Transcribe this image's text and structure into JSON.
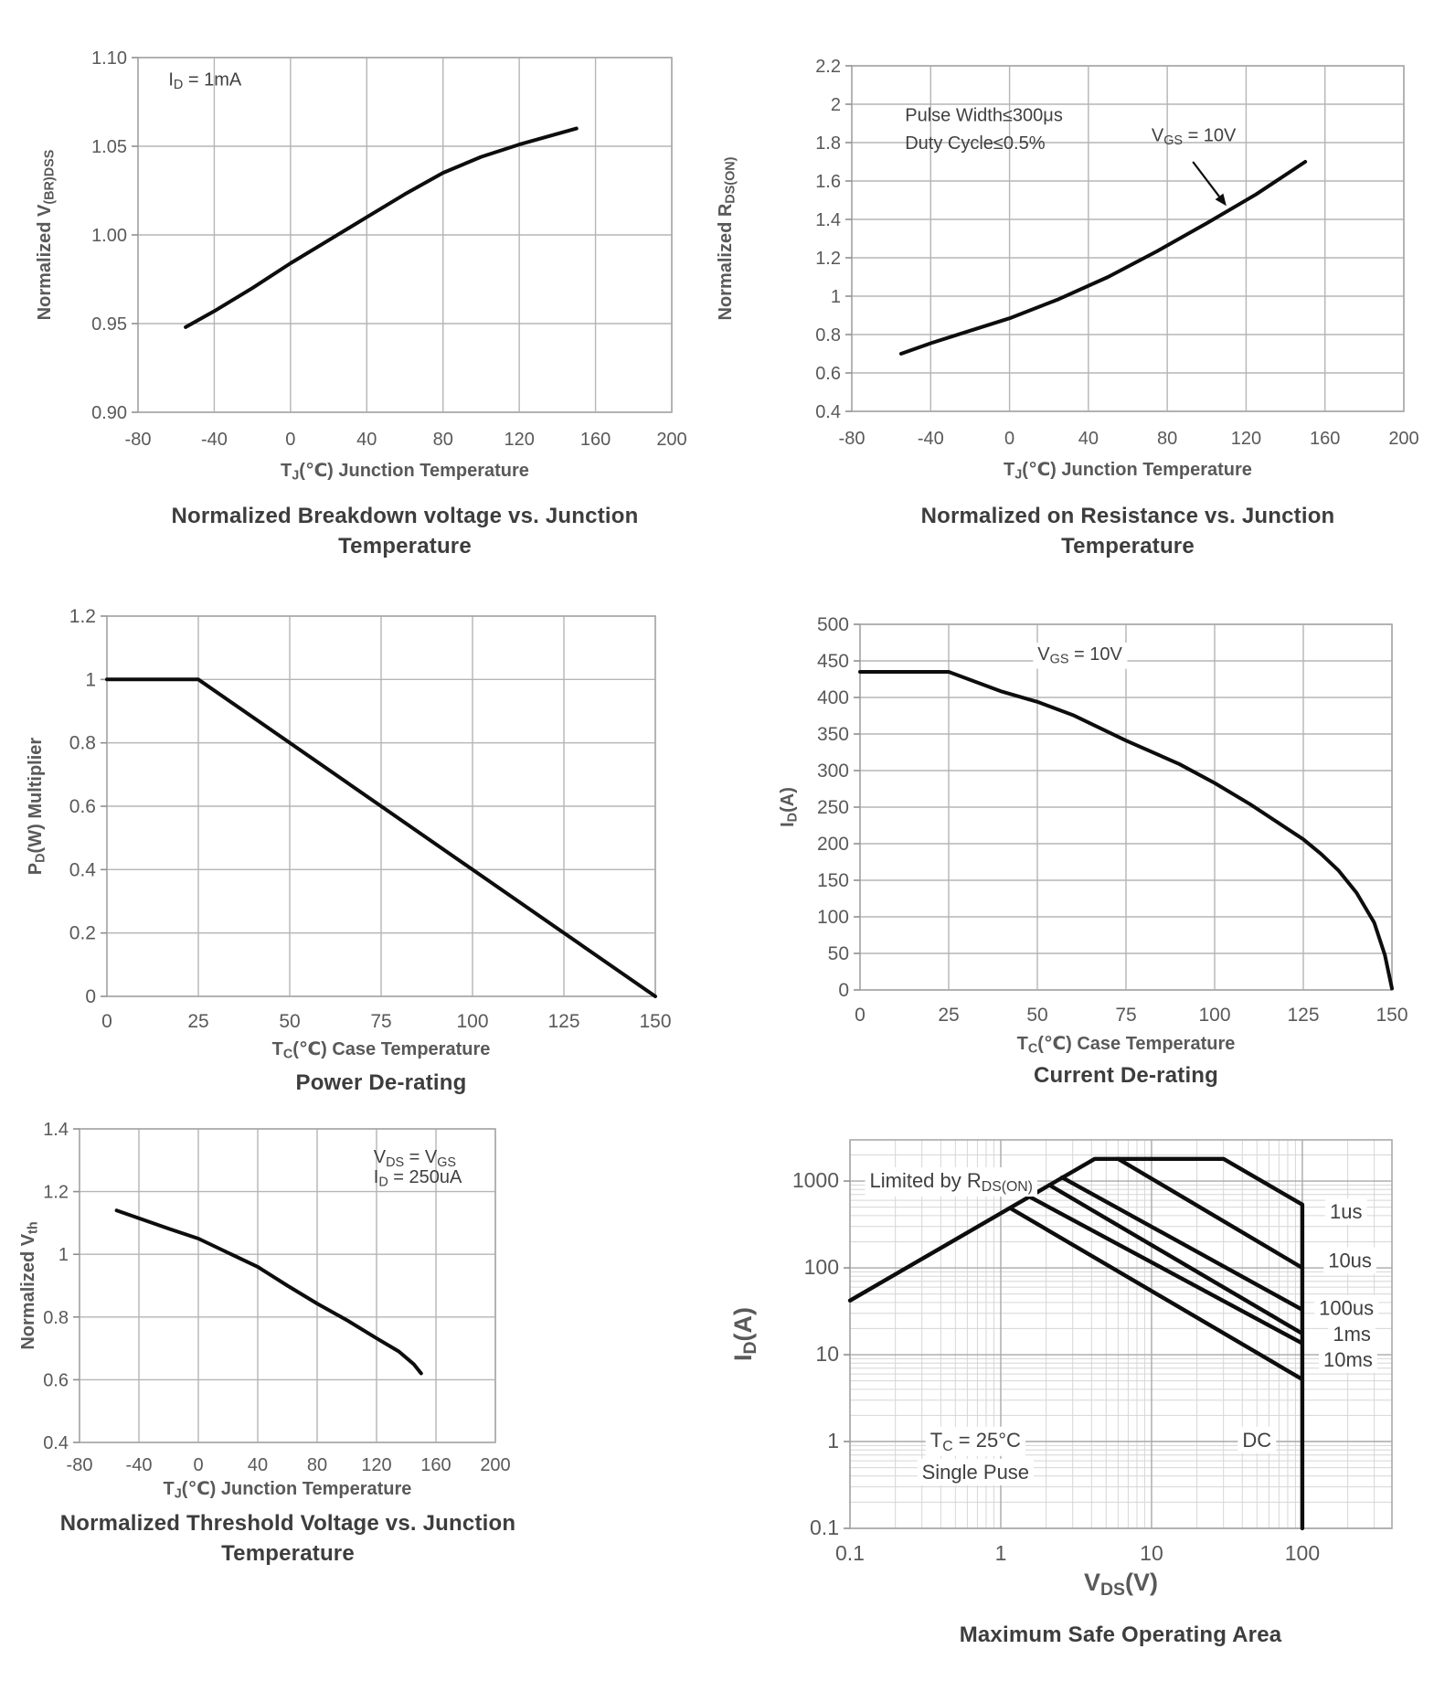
{
  "colors": {
    "curve": "#0d0d0d",
    "grid_minor": "#d6d6d6",
    "grid_major": "#a9a9a9",
    "border": "#a9a9a9",
    "tick_text": "#595959",
    "axis_title_text": "#595959",
    "caption_text": "#3d3d3d",
    "annotation_text": "#404040"
  },
  "chart_data": [
    {
      "id": "breakdown-voltage",
      "type": "line",
      "title": "Normalized Breakdown voltage vs. Junction Temperature",
      "xlabel": [
        {
          "t": "T"
        },
        {
          "t": "J",
          "sub": true
        },
        {
          "t": "(℃) Junction Temperature"
        }
      ],
      "ylabel": [
        {
          "t": "Normalized V"
        },
        {
          "t": "(BR)DSS",
          "sub": true
        }
      ],
      "xlim": [
        -80,
        200
      ],
      "ylim": [
        0.9,
        1.1
      ],
      "xticks": [
        {
          "v": -80,
          "l": "-80"
        },
        {
          "v": -40,
          "l": "-40"
        },
        {
          "v": 0,
          "l": "0"
        },
        {
          "v": 40,
          "l": "40"
        },
        {
          "v": 80,
          "l": "80"
        },
        {
          "v": 120,
          "l": "120"
        },
        {
          "v": 160,
          "l": "160"
        },
        {
          "v": 200,
          "l": "200"
        }
      ],
      "yticks": [
        {
          "v": 0.9,
          "l": "0.90"
        },
        {
          "v": 0.95,
          "l": "0.95"
        },
        {
          "v": 1.0,
          "l": "1.00"
        },
        {
          "v": 1.05,
          "l": "1.05"
        },
        {
          "v": 1.1,
          "l": "1.10"
        }
      ],
      "series": [
        {
          "name": "normalized-vbrdss",
          "points": [
            [
              -55,
              0.948
            ],
            [
              -40,
              0.957
            ],
            [
              -20,
              0.97
            ],
            [
              0,
              0.984
            ],
            [
              20,
              0.997
            ],
            [
              40,
              1.01
            ],
            [
              60,
              1.023
            ],
            [
              80,
              1.035
            ],
            [
              100,
              1.044
            ],
            [
              120,
              1.051
            ],
            [
              150,
              1.06
            ]
          ]
        }
      ],
      "annotations": [
        {
          "x": -64,
          "y": 1.088,
          "anchor": "start",
          "segments": [
            {
              "t": "I"
            },
            {
              "t": "D",
              "sub": true
            },
            {
              "t": " = 1mA"
            }
          ]
        }
      ]
    },
    {
      "id": "on-resistance",
      "type": "line",
      "title": "Normalized on Resistance vs. Junction Temperature",
      "xlabel": [
        {
          "t": "T"
        },
        {
          "t": "J",
          "sub": true
        },
        {
          "t": "(℃) Junction Temperature"
        }
      ],
      "ylabel": [
        {
          "t": "Normalized R"
        },
        {
          "t": "DS(ON)",
          "sub": true
        }
      ],
      "xlim": [
        -80,
        200
      ],
      "ylim": [
        0.4,
        2.2
      ],
      "xticks": [
        {
          "v": -80,
          "l": "-80"
        },
        {
          "v": -40,
          "l": "-40"
        },
        {
          "v": 0,
          "l": "0"
        },
        {
          "v": 40,
          "l": "40"
        },
        {
          "v": 80,
          "l": "80"
        },
        {
          "v": 120,
          "l": "120"
        },
        {
          "v": 160,
          "l": "160"
        },
        {
          "v": 200,
          "l": "200"
        }
      ],
      "yticks": [
        {
          "v": 0.4,
          "l": "0.4"
        },
        {
          "v": 0.6,
          "l": "0.6"
        },
        {
          "v": 0.8,
          "l": "0.8"
        },
        {
          "v": 1.0,
          "l": "1"
        },
        {
          "v": 1.2,
          "l": "1.2"
        },
        {
          "v": 1.4,
          "l": "1.4"
        },
        {
          "v": 1.6,
          "l": "1.6"
        },
        {
          "v": 1.8,
          "l": "1.8"
        },
        {
          "v": 2.0,
          "l": "2"
        },
        {
          "v": 2.2,
          "l": "2.2"
        }
      ],
      "series": [
        {
          "name": "normalized-rdson",
          "points": [
            [
              -55,
              0.7
            ],
            [
              -40,
              0.755
            ],
            [
              -20,
              0.82
            ],
            [
              0,
              0.885
            ],
            [
              25,
              0.985
            ],
            [
              50,
              1.1
            ],
            [
              75,
              1.235
            ],
            [
              100,
              1.38
            ],
            [
              125,
              1.53
            ],
            [
              150,
              1.7
            ]
          ]
        }
      ],
      "annotations": [
        {
          "x": -53,
          "y": 1.945,
          "anchor": "start",
          "segments": [
            {
              "t": "Pulse Width≤300μs"
            }
          ]
        },
        {
          "x": -53,
          "y": 1.8,
          "anchor": "start",
          "segments": [
            {
              "t": "Duty Cycle≤0.5%"
            }
          ]
        },
        {
          "x": 72,
          "y": 1.84,
          "anchor": "start",
          "segments": [
            {
              "t": "V"
            },
            {
              "t": "GS",
              "sub": true
            },
            {
              "t": " = 10V"
            }
          ]
        },
        {
          "type": "arrow",
          "from": [
            93,
            1.7
          ],
          "to": [
            110,
            1.47
          ]
        }
      ]
    },
    {
      "id": "power-derating",
      "type": "line",
      "title": "Power De-rating",
      "xlabel": [
        {
          "t": "T"
        },
        {
          "t": "C",
          "sub": true
        },
        {
          "t": "(℃) Case Temperature"
        }
      ],
      "ylabel": [
        {
          "t": "P"
        },
        {
          "t": "D",
          "sub": true
        },
        {
          "t": "(W) Multiplier"
        }
      ],
      "xlim": [
        0,
        150
      ],
      "ylim": [
        0,
        1.2
      ],
      "xticks": [
        {
          "v": 0,
          "l": "0"
        },
        {
          "v": 25,
          "l": "25"
        },
        {
          "v": 50,
          "l": "50"
        },
        {
          "v": 75,
          "l": "75"
        },
        {
          "v": 100,
          "l": "100"
        },
        {
          "v": 125,
          "l": "125"
        },
        {
          "v": 150,
          "l": "150"
        }
      ],
      "yticks": [
        {
          "v": 0,
          "l": "0"
        },
        {
          "v": 0.2,
          "l": "0.2"
        },
        {
          "v": 0.4,
          "l": "0.4"
        },
        {
          "v": 0.6,
          "l": "0.6"
        },
        {
          "v": 0.8,
          "l": "0.8"
        },
        {
          "v": 1.0,
          "l": "1"
        },
        {
          "v": 1.2,
          "l": "1.2"
        }
      ],
      "series": [
        {
          "name": "pd-multiplier",
          "points": [
            [
              0,
              1
            ],
            [
              25,
              1
            ],
            [
              150,
              0
            ]
          ]
        }
      ],
      "annotations": []
    },
    {
      "id": "current-derating",
      "type": "line",
      "title": "Current De-rating",
      "xlabel": [
        {
          "t": "T"
        },
        {
          "t": "C",
          "sub": true
        },
        {
          "t": "(℃) Case Temperature"
        }
      ],
      "ylabel": [
        {
          "t": "I"
        },
        {
          "t": "D",
          "sub": true
        },
        {
          "t": "(A)"
        }
      ],
      "xlim": [
        0,
        150
      ],
      "ylim": [
        0,
        500
      ],
      "xticks": [
        {
          "v": 0,
          "l": "0"
        },
        {
          "v": 25,
          "l": "25"
        },
        {
          "v": 50,
          "l": "50"
        },
        {
          "v": 75,
          "l": "75"
        },
        {
          "v": 100,
          "l": "100"
        },
        {
          "v": 125,
          "l": "125"
        },
        {
          "v": 150,
          "l": "150"
        }
      ],
      "yticks": [
        {
          "v": 0,
          "l": "0"
        },
        {
          "v": 50,
          "l": "50"
        },
        {
          "v": 100,
          "l": "100"
        },
        {
          "v": 150,
          "l": "150"
        },
        {
          "v": 200,
          "l": "200"
        },
        {
          "v": 250,
          "l": "250"
        },
        {
          "v": 300,
          "l": "300"
        },
        {
          "v": 350,
          "l": "350"
        },
        {
          "v": 400,
          "l": "400"
        },
        {
          "v": 450,
          "l": "450"
        },
        {
          "v": 500,
          "l": "500"
        }
      ],
      "series": [
        {
          "name": "id-derating",
          "points": [
            [
              0,
              435
            ],
            [
              25,
              435
            ],
            [
              40,
              408
            ],
            [
              50,
              394
            ],
            [
              60,
              376
            ],
            [
              75,
              341
            ],
            [
              90,
              309
            ],
            [
              100,
              283
            ],
            [
              110,
              254
            ],
            [
              120,
              222
            ],
            [
              125,
              206
            ],
            [
              130,
              186
            ],
            [
              135,
              163
            ],
            [
              140,
              133
            ],
            [
              145,
              92
            ],
            [
              148,
              48
            ],
            [
              150,
              2
            ]
          ]
        }
      ],
      "annotations": [
        {
          "x": 62,
          "y": 460,
          "anchor": "middle",
          "bg": true,
          "segments": [
            {
              "t": "V"
            },
            {
              "t": "GS",
              "sub": true
            },
            {
              "t": " = 10V"
            }
          ]
        }
      ]
    },
    {
      "id": "threshold-voltage",
      "type": "line",
      "title": "Normalized Threshold Voltage vs. Junction Temperature",
      "xlabel": [
        {
          "t": "T"
        },
        {
          "t": "J",
          "sub": true
        },
        {
          "t": "(℃) Junction Temperature"
        }
      ],
      "ylabel": [
        {
          "t": "Normalized V"
        },
        {
          "t": "th",
          "sub": true
        }
      ],
      "xlim": [
        -80,
        200
      ],
      "ylim": [
        0.4,
        1.4
      ],
      "xticks": [
        {
          "v": -80,
          "l": "-80"
        },
        {
          "v": -40,
          "l": "-40"
        },
        {
          "v": 0,
          "l": "0"
        },
        {
          "v": 40,
          "l": "40"
        },
        {
          "v": 80,
          "l": "80"
        },
        {
          "v": 120,
          "l": "120"
        },
        {
          "v": 160,
          "l": "160"
        },
        {
          "v": 200,
          "l": "200"
        }
      ],
      "yticks": [
        {
          "v": 0.4,
          "l": "0.4"
        },
        {
          "v": 0.6,
          "l": "0.6"
        },
        {
          "v": 0.8,
          "l": "0.8"
        },
        {
          "v": 1.0,
          "l": "1"
        },
        {
          "v": 1.2,
          "l": "1.2"
        },
        {
          "v": 1.4,
          "l": "1.4"
        }
      ],
      "series": [
        {
          "name": "normalized-vth",
          "points": [
            [
              -55,
              1.14
            ],
            [
              -40,
              1.115
            ],
            [
              -20,
              1.082
            ],
            [
              0,
              1.05
            ],
            [
              20,
              1.005
            ],
            [
              40,
              0.96
            ],
            [
              60,
              0.9
            ],
            [
              80,
              0.843
            ],
            [
              100,
              0.79
            ],
            [
              120,
              0.732
            ],
            [
              135,
              0.69
            ],
            [
              145,
              0.65
            ],
            [
              150,
              0.62
            ]
          ]
        }
      ],
      "annotations": [
        {
          "x": 118,
          "y": 1.312,
          "anchor": "start",
          "segments": [
            {
              "t": "V"
            },
            {
              "t": "DS",
              "sub": true
            },
            {
              "t": " = V"
            },
            {
              "t": "GS",
              "sub": true
            }
          ]
        },
        {
          "x": 118,
          "y": 1.248,
          "anchor": "start",
          "segments": [
            {
              "t": "I"
            },
            {
              "t": "D",
              "sub": true
            },
            {
              "t": " = 250uA"
            }
          ]
        }
      ]
    },
    {
      "id": "safe-operating-area",
      "type": "line-loglog",
      "title": "Maximum Safe Operating Area",
      "xlabel": [
        {
          "t": "V"
        },
        {
          "t": "DS",
          "sub": true
        },
        {
          "t": "(V)"
        }
      ],
      "ylabel": [
        {
          "t": "I"
        },
        {
          "t": "D",
          "sub": true
        },
        {
          "t": "(A)"
        }
      ],
      "xlim": [
        0.1,
        393
      ],
      "ylim": [
        0.1,
        2980
      ],
      "xticks": [
        {
          "v": 0.1,
          "l": "0.1"
        },
        {
          "v": 1,
          "l": "1"
        },
        {
          "v": 10,
          "l": "10"
        },
        {
          "v": 100,
          "l": "100"
        }
      ],
      "yticks": [
        {
          "v": 0.1,
          "l": "0.1"
        },
        {
          "v": 1,
          "l": "1"
        },
        {
          "v": 10,
          "l": "10"
        },
        {
          "v": 100,
          "l": "100"
        },
        {
          "v": 1000,
          "l": "1000"
        }
      ],
      "series": [
        {
          "name": "rdson-limit-1us-and-vds-max",
          "points": [
            [
              0.1,
              42
            ],
            [
              4.2,
              1800
            ],
            [
              30,
              1800
            ],
            [
              100,
              535
            ],
            [
              100,
              0.1
            ]
          ]
        },
        {
          "name": "10us",
          "points": [
            [
              6,
              1800
            ],
            [
              100,
              100
            ]
          ]
        },
        {
          "name": "100us",
          "points": [
            [
              2.55,
              1100
            ],
            [
              100,
              33
            ]
          ]
        },
        {
          "name": "1ms",
          "points": [
            [
              2.1,
              900
            ],
            [
              100,
              17.5
            ]
          ]
        },
        {
          "name": "10ms",
          "points": [
            [
              1.55,
              660
            ],
            [
              100,
              13.5
            ]
          ]
        },
        {
          "name": "dc",
          "points": [
            [
              1.15,
              490
            ],
            [
              100,
              5.2
            ]
          ]
        }
      ],
      "annotations": [
        {
          "x": 0.135,
          "y": 1000,
          "anchor": "start",
          "bg": true,
          "segments": [
            {
              "t": "Limited by R"
            },
            {
              "t": "DS(ON)",
              "sub": true
            }
          ]
        },
        {
          "x": 0.68,
          "y": 1.03,
          "anchor": "middle",
          "bg": true,
          "segments": [
            {
              "t": "T"
            },
            {
              "t": "C",
              "sub": true
            },
            {
              "t": " = 25°C"
            }
          ]
        },
        {
          "x": 0.68,
          "y": 0.44,
          "anchor": "middle",
          "bg": true,
          "segments": [
            {
              "t": "Single Puse"
            }
          ]
        },
        {
          "x": 50,
          "y": 1.03,
          "anchor": "middle",
          "bg": true,
          "segments": [
            {
              "t": "DC"
            }
          ]
        },
        {
          "x": 195,
          "y": 440,
          "anchor": "middle",
          "bg": true,
          "segments": [
            {
              "t": "1us"
            }
          ]
        },
        {
          "x": 207,
          "y": 120,
          "anchor": "middle",
          "bg": true,
          "segments": [
            {
              "t": "10us"
            }
          ]
        },
        {
          "x": 196,
          "y": 34,
          "anchor": "middle",
          "bg": true,
          "segments": [
            {
              "t": "100us"
            }
          ]
        },
        {
          "x": 213,
          "y": 17,
          "anchor": "middle",
          "bg": true,
          "segments": [
            {
              "t": "1ms"
            }
          ]
        },
        {
          "x": 201,
          "y": 8.6,
          "anchor": "middle",
          "bg": true,
          "segments": [
            {
              "t": "10ms"
            }
          ]
        }
      ]
    }
  ]
}
